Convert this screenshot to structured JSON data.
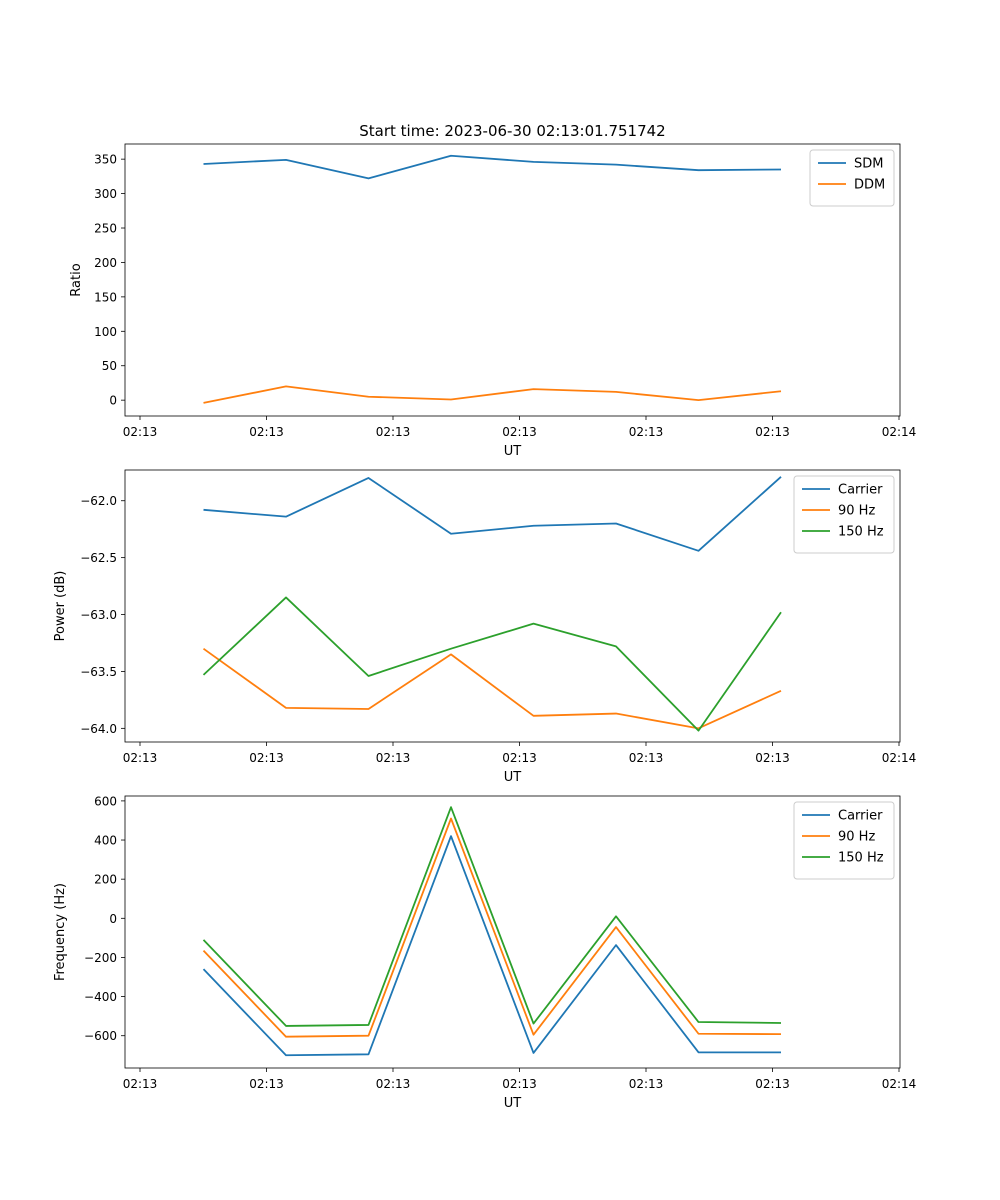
{
  "figure": {
    "title": "Start time: 2023-06-30 02:13:01.751742"
  },
  "chart_data": [
    {
      "type": "line",
      "title": "Start time: 2023-06-30 02:13:01.751742",
      "xlabel": "UT",
      "ylabel": "Ratio",
      "x_tick_labels": [
        "02:13",
        "02:13",
        "02:13",
        "02:13",
        "02:13",
        "02:13",
        "02:14"
      ],
      "ylim": [
        -23,
        372
      ],
      "yticks": [
        0,
        50,
        100,
        150,
        200,
        250,
        300,
        350
      ],
      "grid": false,
      "legend_position": "upper right",
      "series": [
        {
          "name": "SDM",
          "color": "#1f77b4",
          "values": [
            343,
            349,
            322,
            355,
            346,
            342,
            334,
            335
          ]
        },
        {
          "name": "DDM",
          "color": "#ff7f0e",
          "values": [
            -4,
            20,
            5,
            1,
            16,
            12,
            0,
            13
          ]
        }
      ]
    },
    {
      "type": "line",
      "title": "",
      "xlabel": "UT",
      "ylabel": "Power (dB)",
      "x_tick_labels": [
        "02:13",
        "02:13",
        "02:13",
        "02:13",
        "02:13",
        "02:13",
        "02:14"
      ],
      "ylim": [
        -64.12,
        -61.73
      ],
      "yticks": [
        -64.0,
        -63.5,
        -63.0,
        -62.5,
        -62.0
      ],
      "ytick_labels": [
        "−64.0",
        "−63.5",
        "−63.0",
        "−62.5",
        "−62.0"
      ],
      "grid": false,
      "legend_position": "upper right",
      "series": [
        {
          "name": "Carrier",
          "color": "#1f77b4",
          "values": [
            -62.08,
            -62.14,
            -61.8,
            -62.29,
            -62.22,
            -62.2,
            -62.44,
            -61.79
          ]
        },
        {
          "name": "90 Hz",
          "color": "#ff7f0e",
          "values": [
            -63.3,
            -63.82,
            -63.83,
            -63.35,
            -63.89,
            -63.87,
            -64.0,
            -63.67
          ]
        },
        {
          "name": "150 Hz",
          "color": "#2ca02c",
          "values": [
            -63.53,
            -62.85,
            -63.54,
            -63.3,
            -63.08,
            -63.28,
            -64.02,
            -62.98
          ]
        }
      ]
    },
    {
      "type": "line",
      "title": "",
      "xlabel": "UT",
      "ylabel": "Frequency (Hz)",
      "x_tick_labels": [
        "02:13",
        "02:13",
        "02:13",
        "02:13",
        "02:13",
        "02:13",
        "02:14"
      ],
      "ylim": [
        -765,
        625
      ],
      "yticks": [
        -600,
        -400,
        -200,
        0,
        200,
        400,
        600
      ],
      "ytick_labels": [
        "−600",
        "−400",
        "−200",
        "0",
        "200",
        "400",
        "600"
      ],
      "grid": false,
      "legend_position": "upper right",
      "series": [
        {
          "name": "Carrier",
          "color": "#1f77b4",
          "values": [
            -260,
            -700,
            -695,
            420,
            -688,
            -137,
            -685,
            -685
          ]
        },
        {
          "name": "90 Hz",
          "color": "#ff7f0e",
          "values": [
            -165,
            -605,
            -600,
            510,
            -595,
            -45,
            -590,
            -592
          ]
        },
        {
          "name": "150 Hz",
          "color": "#2ca02c",
          "values": [
            -110,
            -550,
            -545,
            568,
            -538,
            10,
            -530,
            -535
          ]
        }
      ]
    }
  ]
}
